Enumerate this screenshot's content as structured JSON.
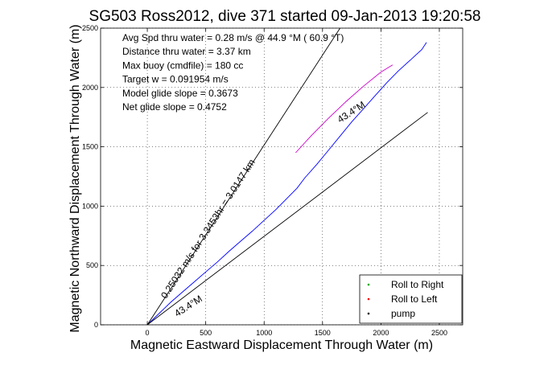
{
  "chart_data": {
    "type": "line",
    "title": "SG503 Ross2012, dive 371 started 09-Jan-2013 19:20:58",
    "xlabel": "Magnetic Eastward Displacement Through Water (m)",
    "ylabel": "Magnetic Northward Displacement Through Water (m)",
    "xlim": [
      -400,
      2700
    ],
    "ylim": [
      0,
      2500
    ],
    "xticks": [
      "0",
      "500",
      "1000",
      "1500",
      "2000",
      "2500"
    ],
    "yticks": [
      "0",
      "500",
      "1000",
      "1500",
      "2000",
      "2500"
    ],
    "xtick_values": [
      0,
      500,
      1000,
      1500,
      2000,
      2500
    ],
    "ytick_values": [
      0,
      500,
      1000,
      1500,
      2000,
      2500
    ],
    "grid": true,
    "legend_position": "bottom-right",
    "legend": [
      {
        "label": "Roll to Right",
        "color": "#00aa00"
      },
      {
        "label": "Roll to Left",
        "color": "#ff0000"
      },
      {
        "label": "pump",
        "color": "#000000"
      }
    ],
    "info_lines": [
      "Avg Spd thru water =  0.28 m/s @  44.9    °M ( 60.9 °T)",
      "Distance thru water =  3.37 km",
      "Max buoy (cmdfile) = 180 cc",
      "Target w = 0.091954 m/s",
      "Model glide slope = 0.3673",
      "Net glide slope = 0.4752"
    ],
    "annotations": [
      {
        "text": "0.25032 m/s for 3.3453hr = 3.0147 km",
        "x": 160,
        "y": 215,
        "angle_deg": 57
      },
      {
        "text": "43.4°M",
        "x": 255,
        "y": 65,
        "angle_deg": 33
      },
      {
        "text": "43.4°M",
        "x": 1650,
        "y": 1700,
        "angle_deg": 33
      }
    ],
    "series": [
      {
        "name": "",
        "color": "#0000ff",
        "x": [
          0,
          100,
          200,
          300,
          400,
          500,
          600,
          700,
          800,
          900,
          1000,
          1100,
          1200,
          1280,
          1350,
          1450,
          1550,
          1650,
          1750,
          1850,
          1950,
          2050,
          2150,
          2250,
          2350,
          2390
        ],
        "y": [
          0,
          95,
          190,
          275,
          360,
          445,
          530,
          620,
          705,
          790,
          880,
          970,
          1070,
          1150,
          1240,
          1350,
          1470,
          1590,
          1710,
          1820,
          1930,
          2040,
          2140,
          2230,
          2320,
          2380
        ]
      },
      {
        "name": "",
        "color": "#cc00cc",
        "x": [
          1270,
          1400,
          1550,
          1700,
          1850,
          2000,
          2100
        ],
        "y": [
          1450,
          1590,
          1740,
          1880,
          2010,
          2130,
          2190
        ]
      },
      {
        "name": "",
        "color": "#000000",
        "x": [
          0,
          1650
        ],
        "y": [
          0,
          2500
        ]
      },
      {
        "name": "",
        "color": "#000000",
        "x": [
          0,
          2400
        ],
        "y": [
          0,
          1790
        ]
      }
    ]
  }
}
